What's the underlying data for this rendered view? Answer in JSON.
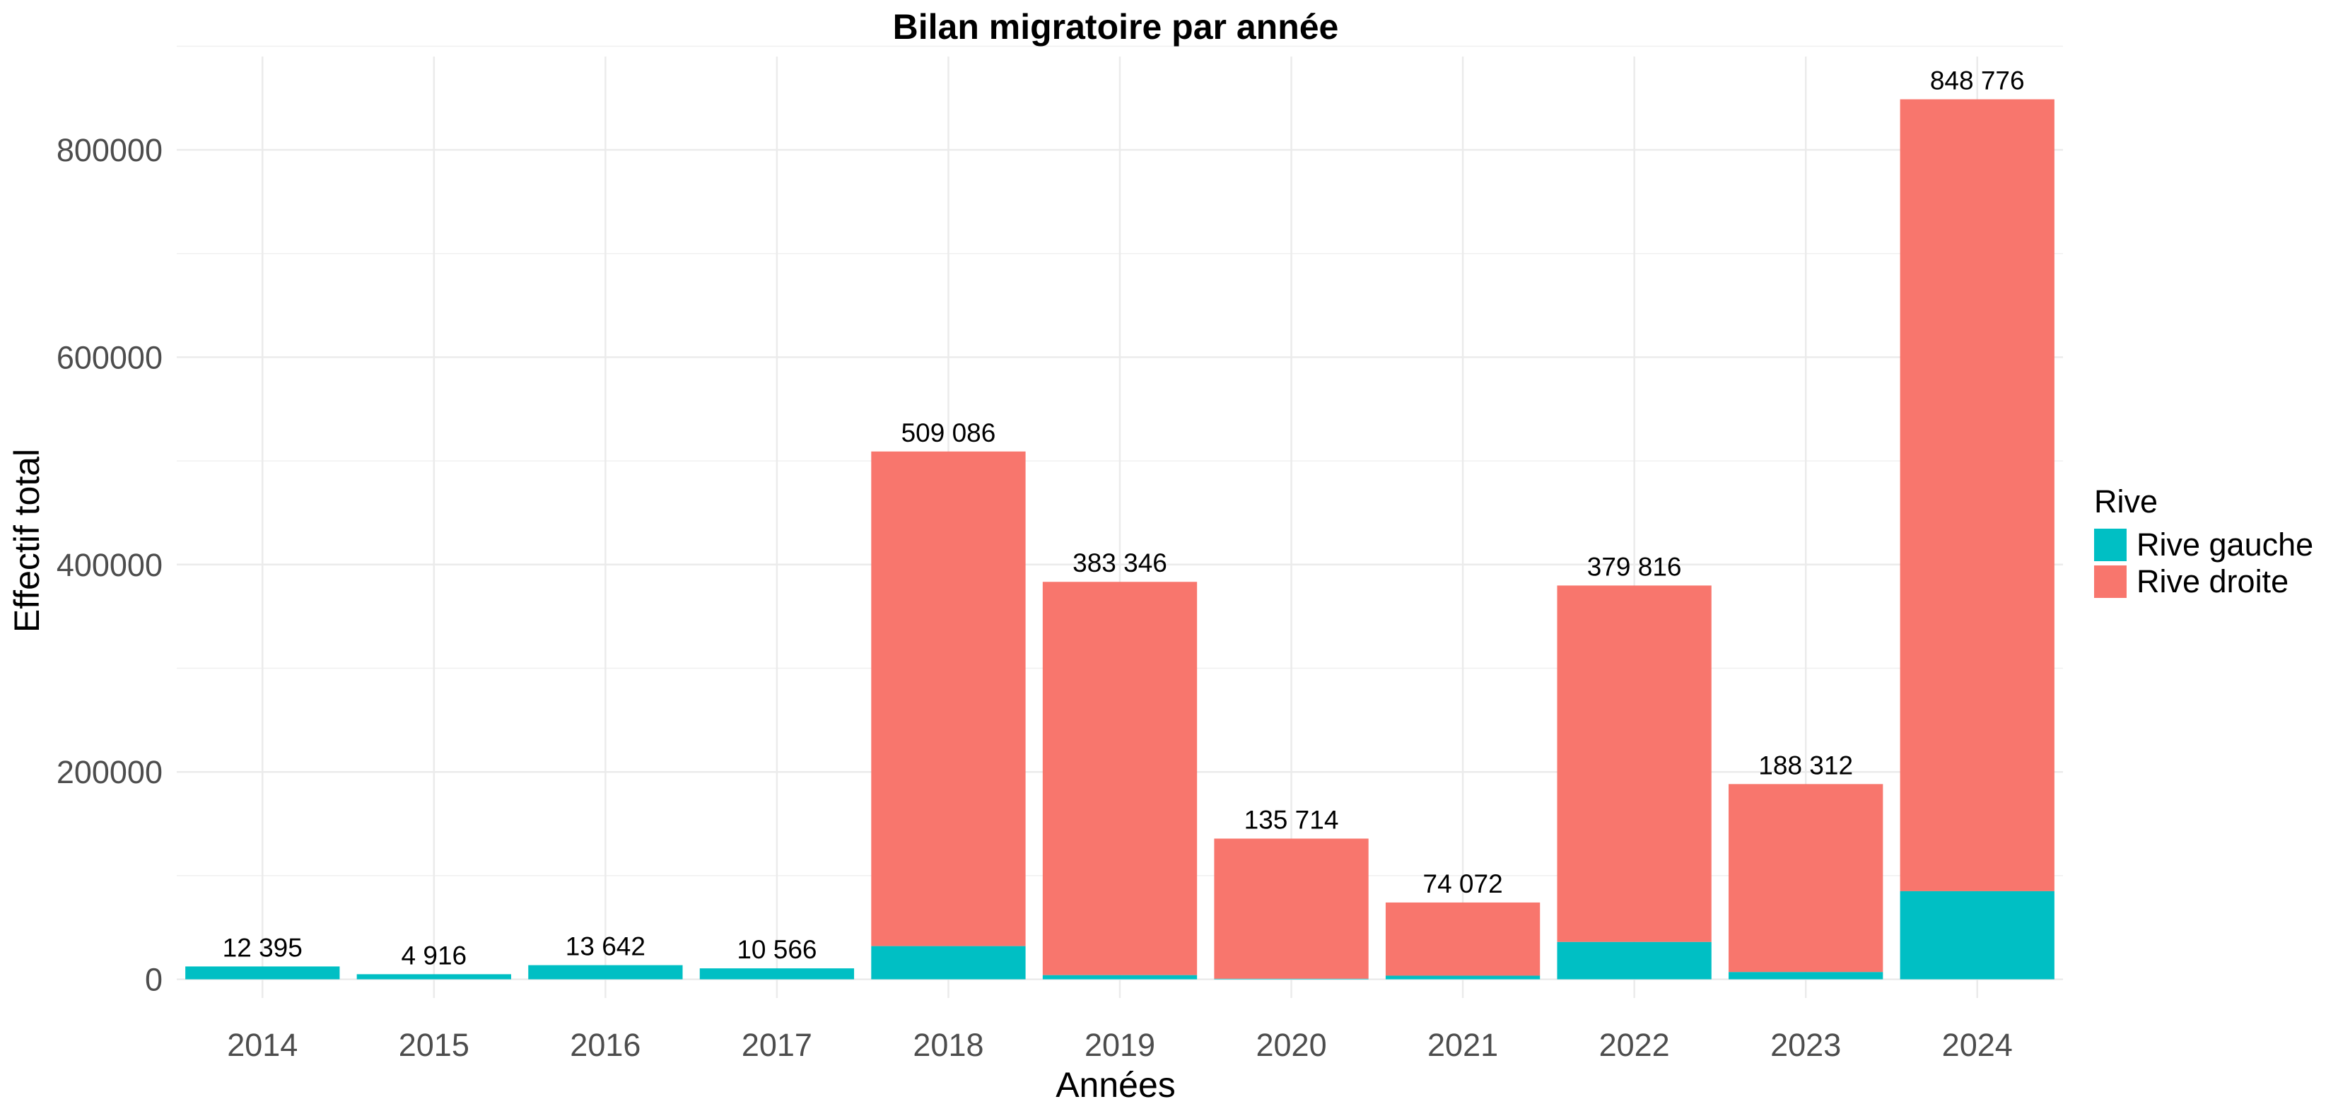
{
  "chart_data": {
    "type": "bar",
    "stacked": true,
    "title": "Bilan migratoire par année",
    "xlabel": "Années",
    "ylabel": "Effectif total",
    "categories": [
      "2014",
      "2015",
      "2016",
      "2017",
      "2018",
      "2019",
      "2020",
      "2021",
      "2022",
      "2023",
      "2024"
    ],
    "series": [
      {
        "name": "Rive gauche",
        "color": "#00BFC4",
        "values": [
          12395,
          4916,
          13642,
          10566,
          32000,
          4000,
          500,
          3500,
          36000,
          7000,
          85000
        ]
      },
      {
        "name": "Rive droite",
        "color": "#F8766D",
        "values": [
          0,
          0,
          0,
          0,
          477086,
          379346,
          135214,
          70572,
          343816,
          181312,
          763776
        ]
      }
    ],
    "totals": [
      12395,
      4916,
      13642,
      10566,
      509086,
      383346,
      135714,
      74072,
      379816,
      188312,
      848776
    ],
    "total_labels": [
      "12 395",
      "4 916",
      "13 642",
      "10 566",
      "509 086",
      "383 346",
      "135 714",
      "74 072",
      "379 816",
      "188 312",
      "848 776"
    ],
    "yticks": [
      0,
      200000,
      400000,
      600000,
      800000
    ],
    "ytick_labels": [
      "0",
      "200000",
      "400000",
      "600000",
      "800000"
    ],
    "ylim": [
      -18000,
      890000
    ],
    "grid": true,
    "legend": {
      "title": "Rive",
      "position": "right"
    }
  }
}
